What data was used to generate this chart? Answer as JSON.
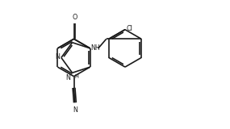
{
  "bg_color": "#ffffff",
  "line_color": "#1a1a1a",
  "lw": 1.2,
  "figsize": [
    2.85,
    1.6
  ],
  "dpi": 100,
  "xlim": [
    0,
    10
  ],
  "ylim": [
    0,
    5.6
  ]
}
